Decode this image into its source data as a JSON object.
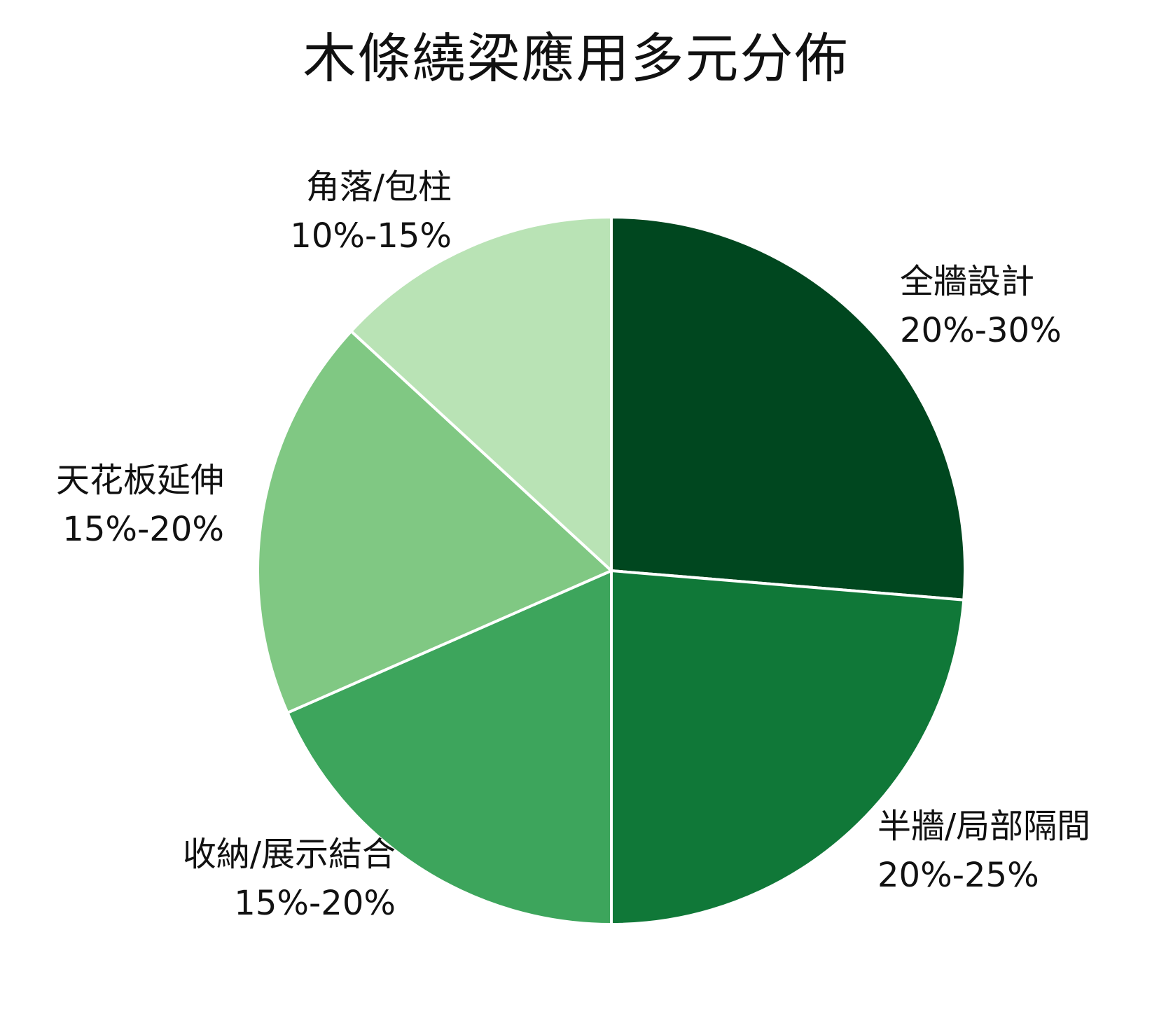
{
  "chart_data": {
    "type": "pie",
    "title": "木條繞梁應用多元分佈",
    "slices": [
      {
        "name": "全牆設計",
        "range": "20%-30%",
        "value": 25,
        "color": "#00471f"
      },
      {
        "name": "半牆/局部隔間",
        "range": "20%-25%",
        "value": 22.5,
        "color": "#107838"
      },
      {
        "name": "收納/展示結合",
        "range": "15%-20%",
        "value": 17.5,
        "color": "#3da55c"
      },
      {
        "name": "天花板延伸",
        "range": "15%-20%",
        "value": 17.5,
        "color": "#80c883"
      },
      {
        "name": "角落/包柱",
        "range": "10%-15%",
        "value": 12.5,
        "color": "#b9e3b5"
      }
    ],
    "start_angle": "12 o'clock",
    "direction": "clockwise"
  }
}
